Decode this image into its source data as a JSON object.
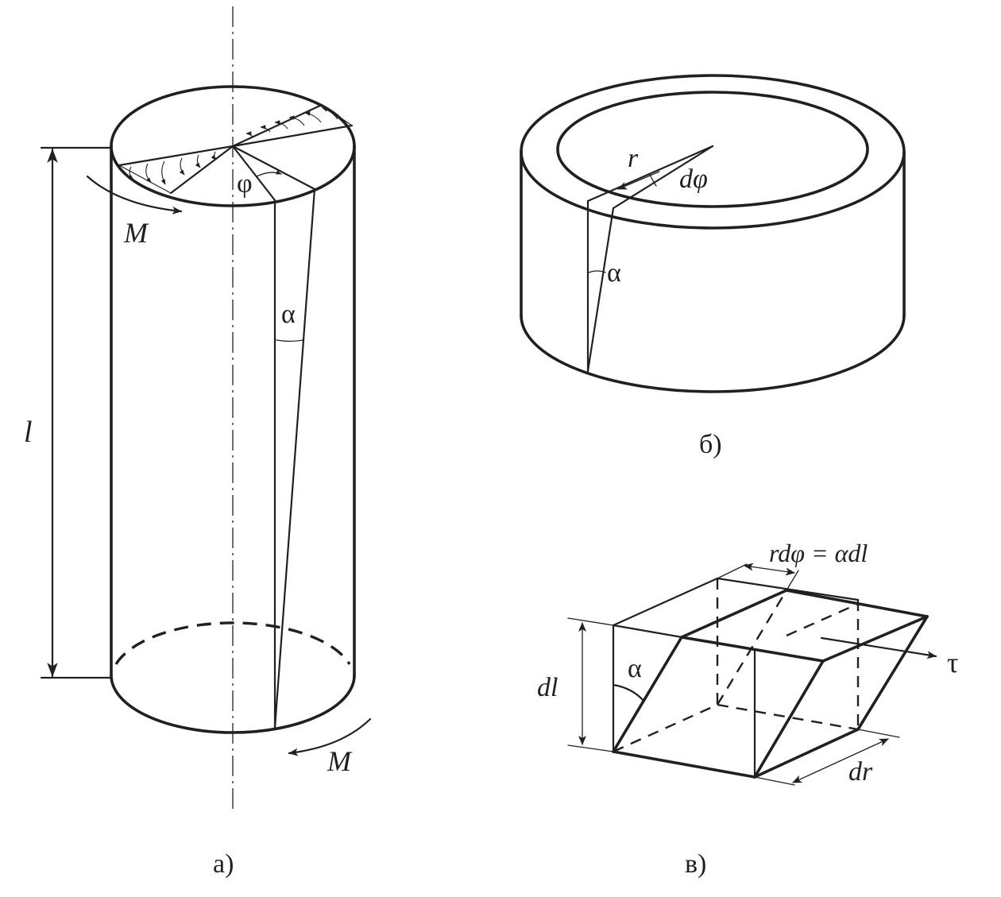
{
  "figure_a": {
    "caption": "а)",
    "length_label": "l",
    "torque_top_label": "M",
    "torque_bottom_label": "M",
    "twist_angle_label": "φ",
    "shear_angle_label": "α"
  },
  "figure_b": {
    "caption": "б)",
    "radius_label": "r",
    "angle_increment_label": "dφ",
    "shear_angle_label": "α"
  },
  "figure_c": {
    "caption": "в)",
    "relation_label": "rdφ = αdl",
    "height_label": "dl",
    "width_label": "dr",
    "shear_angle_label": "α",
    "stress_label": "τ"
  }
}
